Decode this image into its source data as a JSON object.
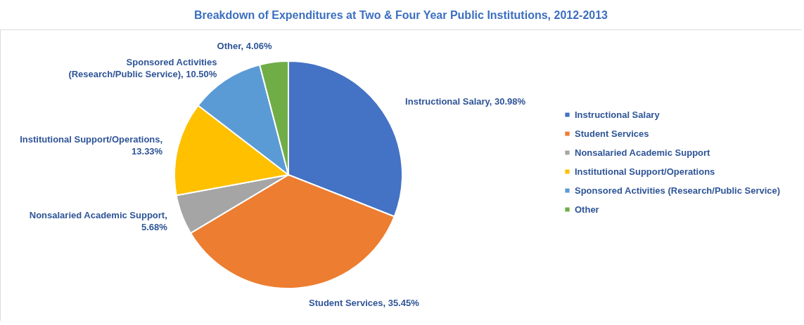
{
  "chart_data": {
    "type": "pie",
    "title": "Breakdown of Expenditures at Two & Four Year Public Institutions, 2012-2013",
    "categories": [
      "Instructional Salary",
      "Student Services",
      "Nonsalaried Academic Support",
      "Institutional Support/Operations",
      "Sponsored Activities (Research/Public Service)",
      "Other"
    ],
    "values": [
      30.98,
      35.45,
      5.68,
      13.33,
      10.5,
      4.06
    ],
    "colors": [
      "#4472c4",
      "#ed7d31",
      "#a5a5a5",
      "#ffc000",
      "#5b9bd5",
      "#70ad47"
    ],
    "value_labels": [
      "Instructional Salary, 30.98%",
      "Student Services, 35.45%",
      "Nonsalaried Academic Support, 5.68%",
      "Institutional Support/Operations, 13.33%",
      "Sponsored Activities (Research/Public Service), 10.50%",
      "Other, 4.06%"
    ],
    "legend": "right"
  }
}
